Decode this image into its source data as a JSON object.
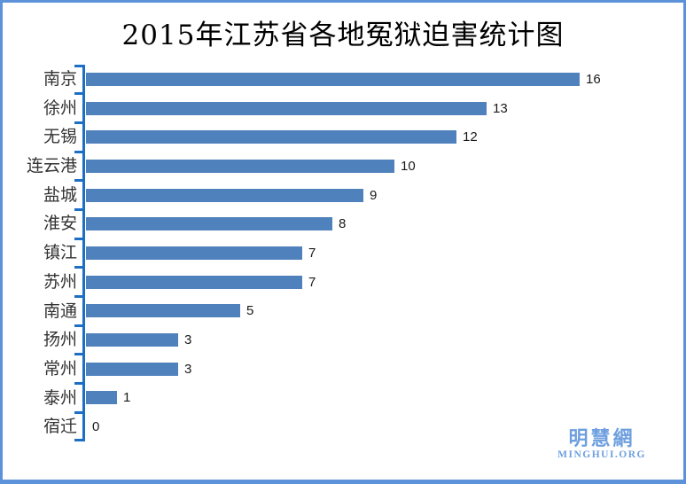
{
  "title": "2015年江苏省各地冤狱迫害统计图",
  "chart_data": {
    "type": "bar",
    "orientation": "horizontal",
    "title": "2015年江苏省各地冤狱迫害统计图",
    "categories": [
      "南京",
      "徐州",
      "无锡",
      "连云港",
      "盐城",
      "淮安",
      "镇江",
      "苏州",
      "南通",
      "扬州",
      "常州",
      "泰州",
      "宿迁"
    ],
    "values": [
      16,
      13,
      12,
      10,
      9,
      8,
      7,
      7,
      5,
      3,
      3,
      1,
      0
    ],
    "data_labels": [
      "16",
      "13",
      "12",
      "10",
      "9",
      "8",
      "7",
      "7",
      "5",
      "3",
      "3",
      "1",
      "0"
    ],
    "xlabel": "",
    "ylabel": "",
    "xlim": [
      0,
      16
    ],
    "grid": false,
    "legend": false,
    "colors": {
      "bar": "#4f81bd",
      "axis": "#1c6fc4",
      "category_text": "#333333",
      "value_text": "#1a1a1a",
      "title_text": "#000000"
    }
  },
  "watermark": {
    "cjk": "明慧網",
    "latin": "MINGHUI.ORG",
    "color": "#6d9fdf"
  },
  "frame": {
    "border_color": "#5b92da",
    "background_color": "#ffffff"
  }
}
